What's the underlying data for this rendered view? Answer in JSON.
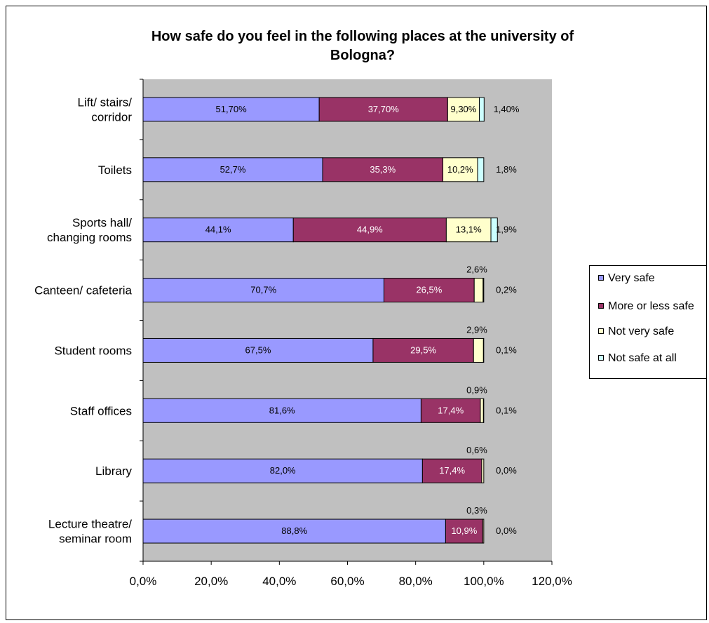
{
  "chart_data": {
    "type": "bar",
    "orientation": "horizontal",
    "stacked": true,
    "title": "How safe do you feel in the following places at the university of Bologna?",
    "title_lines": [
      "How safe do you feel in the following places at the university of",
      "Bologna?"
    ],
    "categories": [
      [
        "Lift/ stairs/",
        "corridor"
      ],
      [
        "Toilets"
      ],
      [
        "Sports hall/",
        "changing rooms"
      ],
      [
        "Canteen/ cafeteria"
      ],
      [
        "Student rooms"
      ],
      [
        "Staff offices"
      ],
      [
        "Library"
      ],
      [
        "Lecture theatre/",
        "seminar room"
      ]
    ],
    "series": [
      {
        "name": "Very safe",
        "color": "#9999ff",
        "label_color": "#000000",
        "values": [
          51.7,
          52.7,
          44.1,
          70.7,
          67.5,
          81.6,
          82.0,
          88.8
        ],
        "labels": [
          "51,70%",
          "52,7%",
          "44,1%",
          "70,7%",
          "67,5%",
          "81,6%",
          "82,0%",
          "88,8%"
        ]
      },
      {
        "name": "More or less safe",
        "color": "#993366",
        "label_color": "#ffffff",
        "values": [
          37.7,
          35.3,
          44.9,
          26.5,
          29.5,
          17.4,
          17.4,
          10.9
        ],
        "labels": [
          "37,70%",
          "35,3%",
          "44,9%",
          "26,5%",
          "29,5%",
          "17,4%",
          "17,4%",
          "10,9%"
        ]
      },
      {
        "name": "Not very safe",
        "color": "#ffffcc",
        "label_color": "#000000",
        "values": [
          9.3,
          10.2,
          13.1,
          2.6,
          2.9,
          0.9,
          0.6,
          0.3
        ],
        "labels": [
          "9,30%",
          "10,2%",
          "13,1%",
          "2,6%",
          "2,9%",
          "0,9%",
          "0,6%",
          "0,3%"
        ]
      },
      {
        "name": "Not safe at all",
        "color": "#ccffff",
        "label_color": "#000000",
        "values": [
          1.4,
          1.8,
          1.9,
          0.2,
          0.1,
          0.1,
          0.0,
          0.0
        ],
        "labels": [
          "1,40%",
          "1,8%",
          "1,9%",
          "0,2%",
          "0,1%",
          "0,1%",
          "0,0%",
          "0,0%"
        ]
      }
    ],
    "xlim": [
      0,
      120
    ],
    "x_ticks": [
      0,
      20,
      40,
      60,
      80,
      100,
      120
    ],
    "x_tick_labels": [
      "0,0%",
      "20,0%",
      "40,0%",
      "60,0%",
      "80,0%",
      "100,0%",
      "120,0%"
    ],
    "plot_background": "#c0c0c0",
    "grid": false,
    "legend_position": "right"
  }
}
